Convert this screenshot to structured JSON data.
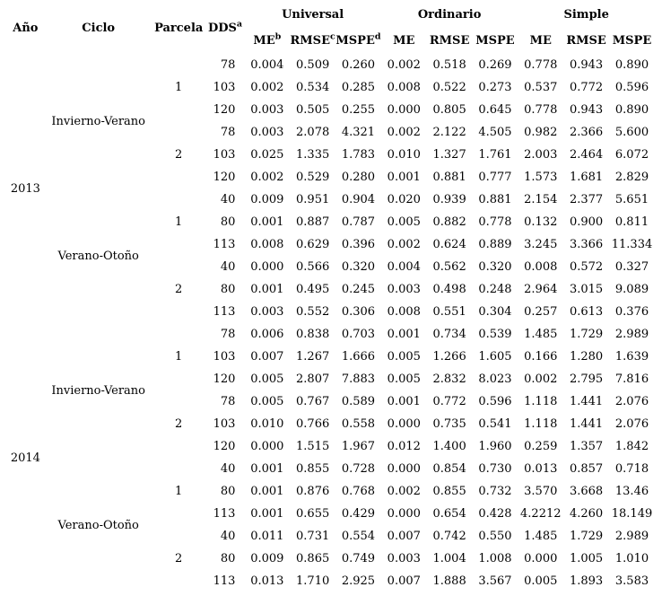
{
  "colors": {
    "text": "#000000",
    "background": "#ffffff"
  },
  "table": {
    "col_headers": {
      "ano": "Año",
      "ciclo": "Ciclo",
      "parcela": "Parcela",
      "dds": "DDS",
      "dds_sup": "a",
      "groups": [
        {
          "label": "Universal",
          "metrics": [
            {
              "label": "ME",
              "sup": "b"
            },
            {
              "label": "RMSE",
              "sup": "c"
            },
            {
              "label": "MSPE",
              "sup": "d"
            }
          ]
        },
        {
          "label": "Ordinario",
          "metrics": [
            {
              "label": "ME"
            },
            {
              "label": "RMSE"
            },
            {
              "label": "MSPE"
            }
          ]
        },
        {
          "label": "Simple",
          "metrics": [
            {
              "label": "ME"
            },
            {
              "label": "RMSE"
            },
            {
              "label": "MSPE"
            }
          ]
        }
      ]
    },
    "years": [
      {
        "label": "2013",
        "cycles": [
          {
            "label": "Invierno-Verano",
            "parcelas": [
              {
                "label": "1",
                "rows": [
                  {
                    "dds": "78",
                    "values": [
                      "0.004",
                      "0.509",
                      "0.260",
                      "0.002",
                      "0.518",
                      "0.269",
                      "0.778",
                      "0.943",
                      "0.890"
                    ]
                  },
                  {
                    "dds": "103",
                    "values": [
                      "0.002",
                      "0.534",
                      "0.285",
                      "0.008",
                      "0.522",
                      "0.273",
                      "0.537",
                      "0.772",
                      "0.596"
                    ]
                  },
                  {
                    "dds": "120",
                    "values": [
                      "0.003",
                      "0.505",
                      "0.255",
                      "0.000",
                      "0.805",
                      "0.645",
                      "0.778",
                      "0.943",
                      "0.890"
                    ]
                  }
                ]
              },
              {
                "label": "2",
                "rows": [
                  {
                    "dds": "78",
                    "values": [
                      "0.003",
                      "2.078",
                      "4.321",
                      "0.002",
                      "2.122",
                      "4.505",
                      "0.982",
                      "2.366",
                      "5.600"
                    ]
                  },
                  {
                    "dds": "103",
                    "values": [
                      "0.025",
                      "1.335",
                      "1.783",
                      "0.010",
                      "1.327",
                      "1.761",
                      "2.003",
                      "2.464",
                      "6.072"
                    ]
                  },
                  {
                    "dds": "120",
                    "values": [
                      "0.002",
                      "0.529",
                      "0.280",
                      "0.001",
                      "0.881",
                      "0.777",
                      "1.573",
                      "1.681",
                      "2.829"
                    ]
                  }
                ]
              }
            ]
          },
          {
            "label": "Verano-Otoño",
            "parcelas": [
              {
                "label": "1",
                "rows": [
                  {
                    "dds": "40",
                    "values": [
                      "0.009",
                      "0.951",
                      "0.904",
                      "0.020",
                      "0.939",
                      "0.881",
                      "2.154",
                      "2.377",
                      "5.651"
                    ]
                  },
                  {
                    "dds": "80",
                    "values": [
                      "0.001",
                      "0.887",
                      "0.787",
                      "0.005",
                      "0.882",
                      "0.778",
                      "0.132",
                      "0.900",
                      "0.811"
                    ]
                  },
                  {
                    "dds": "113",
                    "values": [
                      "0.008",
                      "0.629",
                      "0.396",
                      "0.002",
                      "0.624",
                      "0.889",
                      "3.245",
                      "3.366",
                      "11.334"
                    ]
                  }
                ]
              },
              {
                "label": "2",
                "rows": [
                  {
                    "dds": "40",
                    "values": [
                      "0.000",
                      "0.566",
                      "0.320",
                      "0.004",
                      "0.562",
                      "0.320",
                      "0.008",
                      "0.572",
                      "0.327"
                    ]
                  },
                  {
                    "dds": "80",
                    "values": [
                      "0.001",
                      "0.495",
                      "0.245",
                      "0.003",
                      "0.498",
                      "0.248",
                      "2.964",
                      "3.015",
                      "9.089"
                    ]
                  },
                  {
                    "dds": "113",
                    "values": [
                      "0.003",
                      "0.552",
                      "0.306",
                      "0.008",
                      "0.551",
                      "0.304",
                      "0.257",
                      "0.613",
                      "0.376"
                    ]
                  }
                ]
              }
            ]
          }
        ]
      },
      {
        "label": "2014",
        "cycles": [
          {
            "label": "Invierno-Verano",
            "parcelas": [
              {
                "label": "1",
                "rows": [
                  {
                    "dds": "78",
                    "values": [
                      "0.006",
                      "0.838",
                      "0.703",
                      "0.001",
                      "0.734",
                      "0.539",
                      "1.485",
                      "1.729",
                      "2.989"
                    ]
                  },
                  {
                    "dds": "103",
                    "values": [
                      "0.007",
                      "1.267",
                      "1.666",
                      "0.005",
                      "1.266",
                      "1.605",
                      "0.166",
                      "1.280",
                      "1.639"
                    ]
                  },
                  {
                    "dds": "120",
                    "values": [
                      "0.005",
                      "2.807",
                      "7.883",
                      "0.005",
                      "2.832",
                      "8.023",
                      "0.002",
                      "2.795",
                      "7.816"
                    ]
                  }
                ]
              },
              {
                "label": "2",
                "rows": [
                  {
                    "dds": "78",
                    "values": [
                      "0.005",
                      "0.767",
                      "0.589",
                      "0.001",
                      "0.772",
                      "0.596",
                      "1.118",
                      "1.441",
                      "2.076"
                    ]
                  },
                  {
                    "dds": "103",
                    "values": [
                      "0.010",
                      "0.766",
                      "0.558",
                      "0.000",
                      "0.735",
                      "0.541",
                      "1.118",
                      "1.441",
                      "2.076"
                    ]
                  },
                  {
                    "dds": "120",
                    "values": [
                      "0.000",
                      "1.515",
                      "1.967",
                      "0.012",
                      "1.400",
                      "1.960",
                      "0.259",
                      "1.357",
                      "1.842"
                    ]
                  }
                ]
              }
            ]
          },
          {
            "label": "Verano-Otoño",
            "parcelas": [
              {
                "label": "1",
                "rows": [
                  {
                    "dds": "40",
                    "values": [
                      "0.001",
                      "0.855",
                      "0.728",
                      "0.000",
                      "0.854",
                      "0.730",
                      "0.013",
                      "0.857",
                      "0.718"
                    ]
                  },
                  {
                    "dds": "80",
                    "values": [
                      "0.001",
                      "0.876",
                      "0.768",
                      "0.002",
                      "0.855",
                      "0.732",
                      "3.570",
                      "3.668",
                      "13.46"
                    ]
                  },
                  {
                    "dds": "113",
                    "values": [
                      "0.001",
                      "0.655",
                      "0.429",
                      "0.000",
                      "0.654",
                      "0.428",
                      "4.2212",
                      "4.260",
                      "18.149"
                    ]
                  }
                ]
              },
              {
                "label": "2",
                "rows": [
                  {
                    "dds": "40",
                    "values": [
                      "0.011",
                      "0.731",
                      "0.554",
                      "0.007",
                      "0.742",
                      "0.550",
                      "1.485",
                      "1.729",
                      "2.989"
                    ]
                  },
                  {
                    "dds": "80",
                    "values": [
                      "0.009",
                      "0.865",
                      "0.749",
                      "0.003",
                      "1.004",
                      "1.008",
                      "0.000",
                      "1.005",
                      "1.010"
                    ]
                  },
                  {
                    "dds": "113",
                    "values": [
                      "0.013",
                      "1.710",
                      "2.925",
                      "0.007",
                      "1.888",
                      "3.567",
                      "0.005",
                      "1.893",
                      "3.583"
                    ]
                  }
                ]
              }
            ]
          }
        ]
      }
    ]
  }
}
